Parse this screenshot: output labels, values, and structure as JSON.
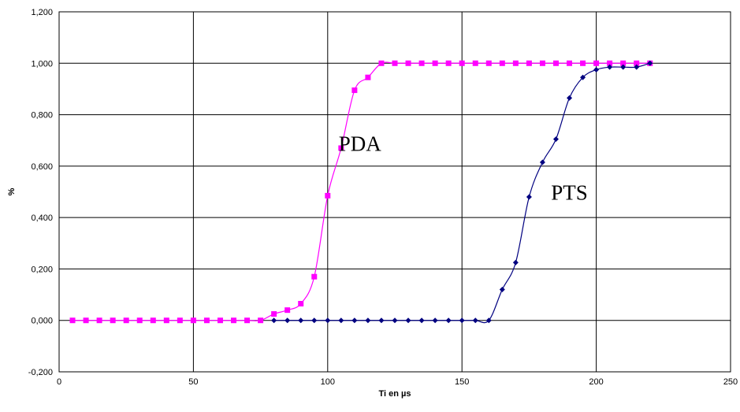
{
  "chart_data": {
    "type": "line",
    "xlabel": "Ti en µs",
    "ylabel": "%",
    "xlim": [
      0,
      250
    ],
    "ylim": [
      -0.2,
      1.2
    ],
    "x_ticks": [
      0,
      50,
      100,
      150,
      200,
      250
    ],
    "y_ticks": [
      -0.2,
      0,
      0.2,
      0.4,
      0.6,
      0.8,
      1.0,
      1.2
    ],
    "x_tick_labels": [
      "0",
      "50",
      "100",
      "150",
      "200",
      "250"
    ],
    "y_tick_labels": [
      "-0,200",
      "0,000",
      "0,200",
      "0,400",
      "0,600",
      "0,800",
      "1,000",
      "1,200"
    ],
    "grid": true,
    "annotations": [
      {
        "text": "PDA",
        "x": 112,
        "y": 0.66
      },
      {
        "text": "PTS",
        "x": 190,
        "y": 0.47
      }
    ],
    "series": [
      {
        "name": "PDA",
        "color": "#ff00ff",
        "marker": "square",
        "x": [
          5,
          10,
          15,
          20,
          25,
          30,
          35,
          40,
          45,
          50,
          55,
          60,
          65,
          70,
          75,
          80,
          85,
          90,
          95,
          100,
          105,
          110,
          115,
          120,
          125,
          130,
          135,
          140,
          145,
          150,
          155,
          160,
          165,
          170,
          175,
          180,
          185,
          190,
          195,
          200,
          205,
          210,
          215,
          220
        ],
        "y": [
          0,
          0,
          0,
          0,
          0,
          0,
          0,
          0,
          0,
          0,
          0,
          0,
          0,
          0,
          0,
          0.025,
          0.04,
          0.065,
          0.17,
          0.485,
          0.67,
          0.895,
          0.945,
          1,
          1,
          1,
          1,
          1,
          1,
          1,
          1,
          1,
          1,
          1,
          1,
          1,
          1,
          1,
          1,
          1,
          1,
          1,
          1,
          1
        ]
      },
      {
        "name": "PTS",
        "color": "#000080",
        "marker": "diamond",
        "x": [
          80,
          85,
          90,
          95,
          100,
          105,
          110,
          115,
          120,
          125,
          130,
          135,
          140,
          145,
          150,
          155,
          160,
          165,
          170,
          175,
          180,
          185,
          190,
          195,
          200,
          205,
          210,
          215,
          220
        ],
        "y": [
          0,
          0,
          0,
          0,
          0,
          0,
          0,
          0,
          0,
          0,
          0,
          0,
          0,
          0,
          0,
          0,
          0,
          0.12,
          0.225,
          0.48,
          0.615,
          0.705,
          0.865,
          0.945,
          0.975,
          0.985,
          0.985,
          0.985,
          1
        ]
      }
    ]
  }
}
